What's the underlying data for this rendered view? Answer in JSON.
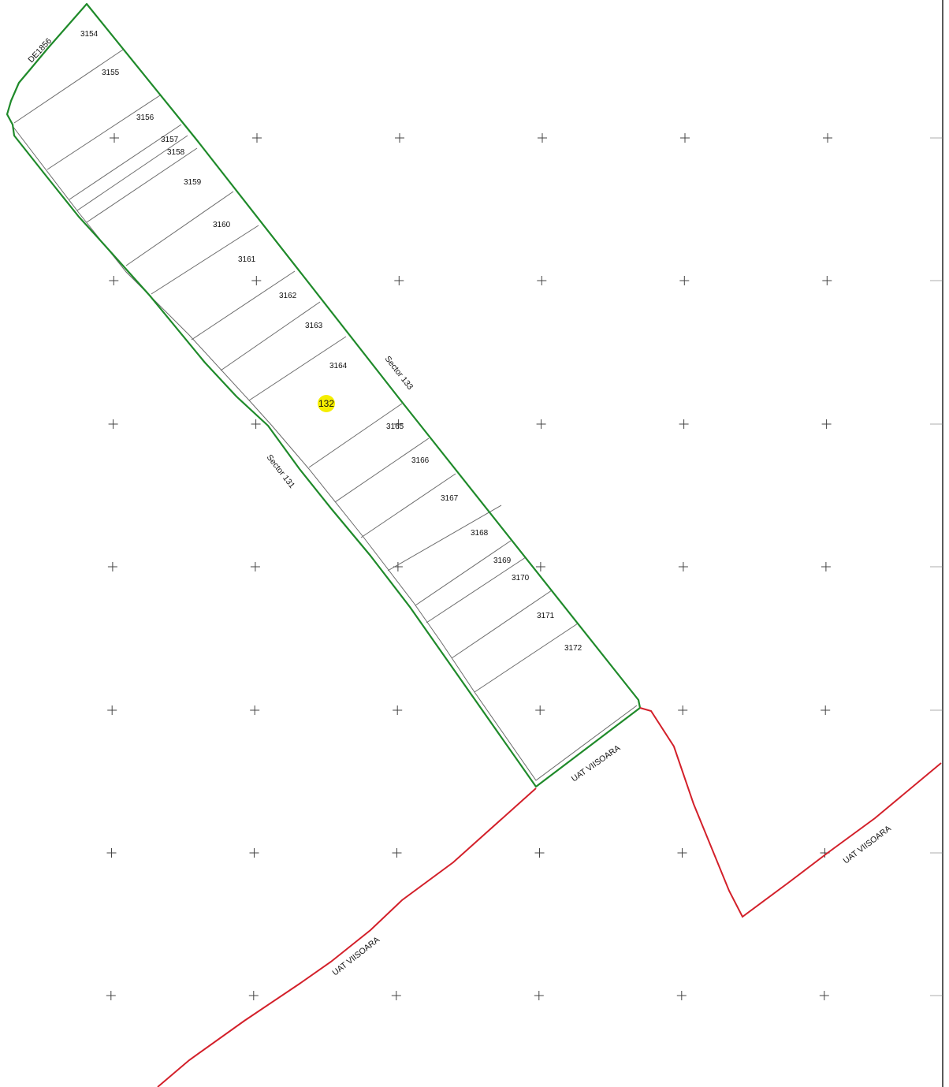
{
  "map": {
    "road_label": "DE1856",
    "sector_highlight": {
      "label": "132",
      "color": "#f5ee00"
    },
    "adjacent_sectors": [
      {
        "label": "Sector 133"
      },
      {
        "label": "Sector 131"
      }
    ],
    "boundary_labels": [
      "UAT VIISOARA",
      "UAT VIISOARA",
      "UAT VIISOARA"
    ],
    "parcels": [
      "3154",
      "3155",
      "3156",
      "3157",
      "3158",
      "3159",
      "3160",
      "3161",
      "3162",
      "3163",
      "3164",
      "3165",
      "3166",
      "3167",
      "3168",
      "3169",
      "3170",
      "3171",
      "3172"
    ],
    "colors": {
      "sector_outline": "#1f8a2a",
      "uat_boundary": "#d3202a",
      "parcel_lines": "#6b6b6b",
      "grid_crosses": "#444444"
    }
  }
}
